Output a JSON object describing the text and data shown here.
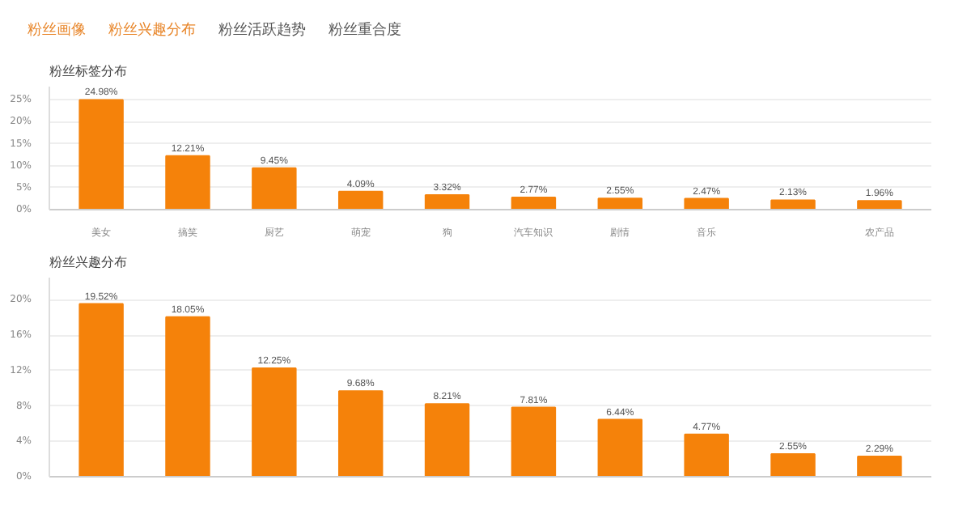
{
  "chart_data": [
    {
      "type": "bar",
      "annotations": [
        "粉丝画像",
        "粉丝兴趣分布",
        "粉丝活跃趋势",
        "粉丝重合度"
      ],
      "title": "粉丝标签分布",
      "categories": [
        "美女",
        "搞笑",
        "厨艺",
        "萌宠",
        "狗",
        "汽车知识",
        "剧情",
        "音乐",
        null,
        "农产品"
      ],
      "values": [
        24.98,
        12.21,
        9.45,
        4.09,
        3.32,
        2.77,
        2.55,
        2.47,
        2.13,
        1.96
      ],
      "value_labels": [
        "24.98%",
        "12.21%",
        "9.45%",
        "4.09%",
        "3.32%",
        "2.77%",
        "2.55%",
        "2.47%",
        "2.13%",
        "1.96%"
      ],
      "color": "#f5820a",
      "ylim": [
        0,
        28
      ],
      "yticks": [
        {
          "value": 0,
          "label": "0%"
        },
        {
          "value": 5,
          "label": "5%"
        },
        {
          "value": 10,
          "label": "10%"
        },
        {
          "value": 15,
          "label": "15%"
        },
        {
          "value": 20,
          "label": "20%"
        },
        {
          "value": 25,
          "label": "25%"
        }
      ],
      "grid": "y"
    },
    {
      "type": "bar",
      "title": "粉丝兴趣分布",
      "categories": [
        null,
        null,
        null,
        null,
        null,
        null,
        null,
        null,
        null,
        null
      ],
      "values": [
        19.52,
        18.05,
        12.25,
        9.68,
        8.21,
        7.81,
        6.44,
        4.77,
        2.55,
        2.29
      ],
      "value_labels": [
        "19.52%",
        "18.05%",
        "12.25%",
        "9.68%",
        "8.21%",
        "7.81%",
        "6.44%",
        "4.77%",
        "2.55%",
        "2.29%"
      ],
      "color": "#f5820a",
      "ylim": [
        0,
        22.5
      ],
      "yticks": [
        {
          "value": 0,
          "label": "0%"
        },
        {
          "value": 4,
          "label": "4%"
        },
        {
          "value": 8,
          "label": "8%"
        },
        {
          "value": 12,
          "label": "12%"
        },
        {
          "value": 16,
          "label": "16%"
        },
        {
          "value": 20,
          "label": "20%"
        }
      ],
      "grid": "y"
    }
  ]
}
